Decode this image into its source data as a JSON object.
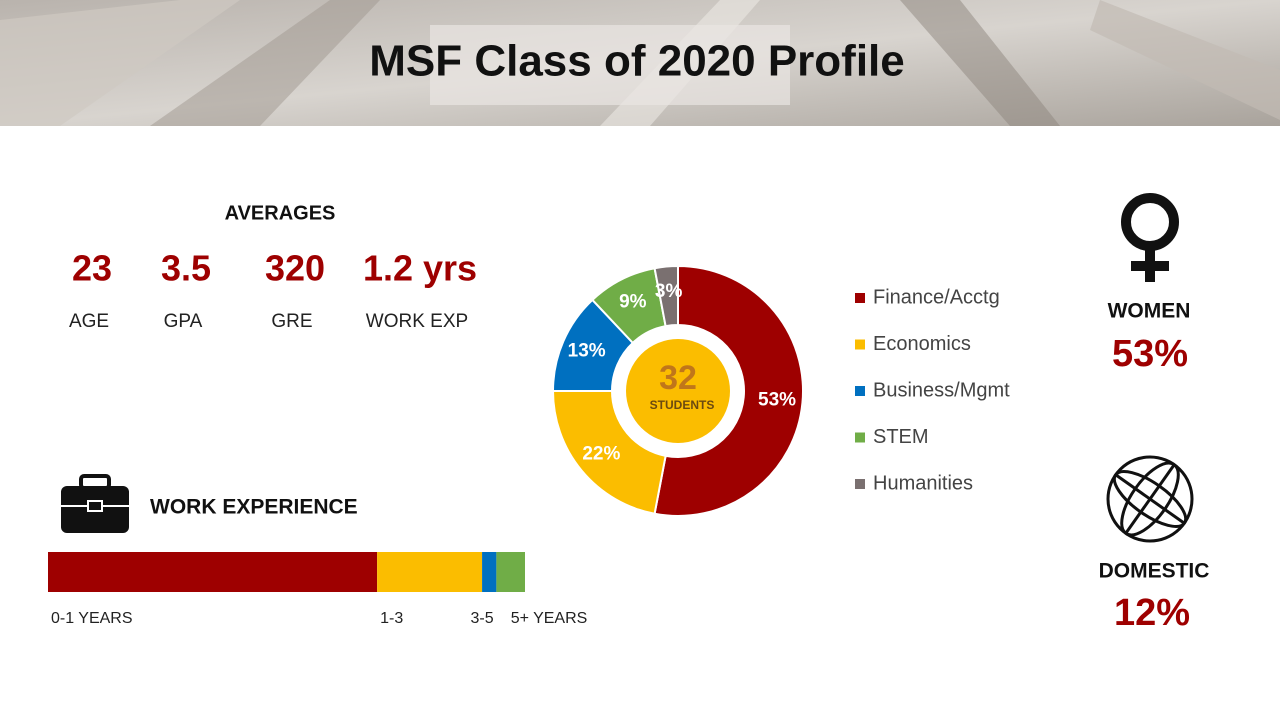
{
  "header": {
    "title": "MSF Class of 2020 Profile"
  },
  "averages": {
    "title": "AVERAGES",
    "items": [
      {
        "value": "23",
        "label": "AGE"
      },
      {
        "value": "3.5",
        "label": "GPA"
      },
      {
        "value": "320",
        "label": "GRE"
      },
      {
        "value": "1.2 yrs",
        "label": "WORK EXP"
      }
    ]
  },
  "chart_data": [
    {
      "type": "donut",
      "categories": [
        "Finance/Acctg",
        "Economics",
        "Business/Mgmt",
        "STEM",
        "Humanities"
      ],
      "values": [
        53,
        22,
        13,
        9,
        3
      ],
      "value_labels": [
        "53%",
        "22%",
        "13%",
        "9%",
        "3%"
      ],
      "colors": [
        "#9e0000",
        "#fbbd00",
        "#0070c0",
        "#70ad47",
        "#7a7070"
      ],
      "center_value": "32",
      "center_label": "STUDENTS",
      "legend": "right"
    },
    {
      "type": "stacked-bar",
      "title": "WORK EXPERIENCE",
      "categories": [
        "0-1 YEARS",
        "1-3",
        "3-5",
        "5+ YEARS"
      ],
      "values": [
        69,
        22,
        3,
        6
      ],
      "colors": [
        "#9e0000",
        "#fbbd00",
        "#0070c0",
        "#70ad47"
      ]
    }
  ],
  "women": {
    "label": "WOMEN",
    "value": "53%"
  },
  "domestic": {
    "label": "DOMESTIC",
    "value": "12%"
  }
}
